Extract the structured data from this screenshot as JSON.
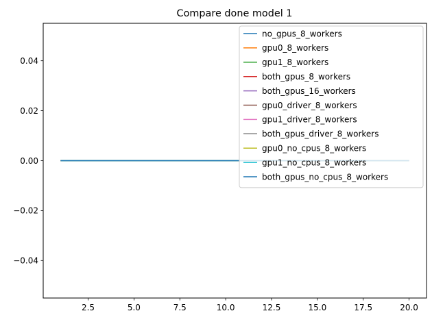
{
  "chart_data": {
    "type": "line",
    "title": "Compare done model 1",
    "xlabel": "",
    "ylabel": "",
    "xlim": [
      0.05,
      20.95
    ],
    "ylim": [
      -0.055,
      0.055
    ],
    "x_ticks": [
      2.5,
      5.0,
      7.5,
      10.0,
      12.5,
      15.0,
      17.5,
      20.0
    ],
    "x_tick_labels": [
      "2.5",
      "5.0",
      "7.5",
      "10.0",
      "12.5",
      "15.0",
      "17.5",
      "20.0"
    ],
    "y_ticks": [
      -0.04,
      -0.02,
      0.0,
      0.02,
      0.04
    ],
    "y_tick_labels": [
      "−0.04",
      "−0.02",
      "0.00",
      "0.02",
      "0.04"
    ],
    "grid": false,
    "legend_position": "top-right",
    "x": [
      1,
      2,
      3,
      4,
      5,
      6,
      7,
      8,
      9,
      10,
      11,
      12,
      13,
      14,
      15,
      16,
      17,
      18,
      19,
      20
    ],
    "series": [
      {
        "name": "no_gpus_8_workers",
        "color": "#1f77b4",
        "values": [
          0,
          0,
          0,
          0,
          0,
          0,
          0,
          0,
          0,
          0,
          0,
          0,
          0,
          0,
          0,
          0,
          0,
          0,
          0,
          0
        ]
      },
      {
        "name": "gpu0_8_workers",
        "color": "#ff7f0e",
        "values": [
          0,
          0,
          0,
          0,
          0,
          0,
          0,
          0,
          0,
          0,
          0,
          0,
          0,
          0,
          0,
          0,
          0,
          0,
          0,
          0
        ]
      },
      {
        "name": "gpu1_8_workers",
        "color": "#2ca02c",
        "values": [
          0,
          0,
          0,
          0,
          0,
          0,
          0,
          0,
          0,
          0,
          0,
          0,
          0,
          0,
          0,
          0,
          0,
          0,
          0,
          0
        ]
      },
      {
        "name": "both_gpus_8_workers",
        "color": "#d62728",
        "values": [
          0,
          0,
          0,
          0,
          0,
          0,
          0,
          0,
          0,
          0,
          0,
          0,
          0,
          0,
          0,
          0,
          0,
          0,
          0,
          0
        ]
      },
      {
        "name": "both_gpus_16_workers",
        "color": "#9467bd",
        "values": [
          0,
          0,
          0,
          0,
          0,
          0,
          0,
          0,
          0,
          0,
          0,
          0,
          0,
          0,
          0,
          0,
          0,
          0,
          0,
          0
        ]
      },
      {
        "name": "gpu0_driver_8_workers",
        "color": "#8c564b",
        "values": [
          0,
          0,
          0,
          0,
          0,
          0,
          0,
          0,
          0,
          0,
          0,
          0,
          0,
          0,
          0,
          0,
          0,
          0,
          0,
          0
        ]
      },
      {
        "name": "gpu1_driver_8_workers",
        "color": "#e377c2",
        "values": [
          0,
          0,
          0,
          0,
          0,
          0,
          0,
          0,
          0,
          0,
          0,
          0,
          0,
          0,
          0,
          0,
          0,
          0,
          0,
          0
        ]
      },
      {
        "name": "both_gpus_driver_8_workers",
        "color": "#7f7f7f",
        "values": [
          0,
          0,
          0,
          0,
          0,
          0,
          0,
          0,
          0,
          0,
          0,
          0,
          0,
          0,
          0,
          0,
          0,
          0,
          0,
          0
        ]
      },
      {
        "name": "gpu0_no_cpus_8_workers",
        "color": "#bcbd22",
        "values": [
          0,
          0,
          0,
          0,
          0,
          0,
          0,
          0,
          0,
          0,
          0,
          0,
          0,
          0,
          0,
          0,
          0,
          0,
          0,
          0
        ]
      },
      {
        "name": "gpu1_no_cpus_8_workers",
        "color": "#17becf",
        "values": [
          0,
          0,
          0,
          0,
          0,
          0,
          0,
          0,
          0,
          0,
          0,
          0,
          0,
          0,
          0,
          0,
          0,
          0,
          0,
          0
        ]
      },
      {
        "name": "both_gpus_no_cpus_8_workers",
        "color": "#1f77b4",
        "values": [
          0,
          0,
          0,
          0,
          0,
          0,
          0,
          0,
          0,
          0,
          0,
          0,
          0,
          0,
          0,
          0,
          0,
          0,
          0,
          0
        ]
      }
    ]
  }
}
